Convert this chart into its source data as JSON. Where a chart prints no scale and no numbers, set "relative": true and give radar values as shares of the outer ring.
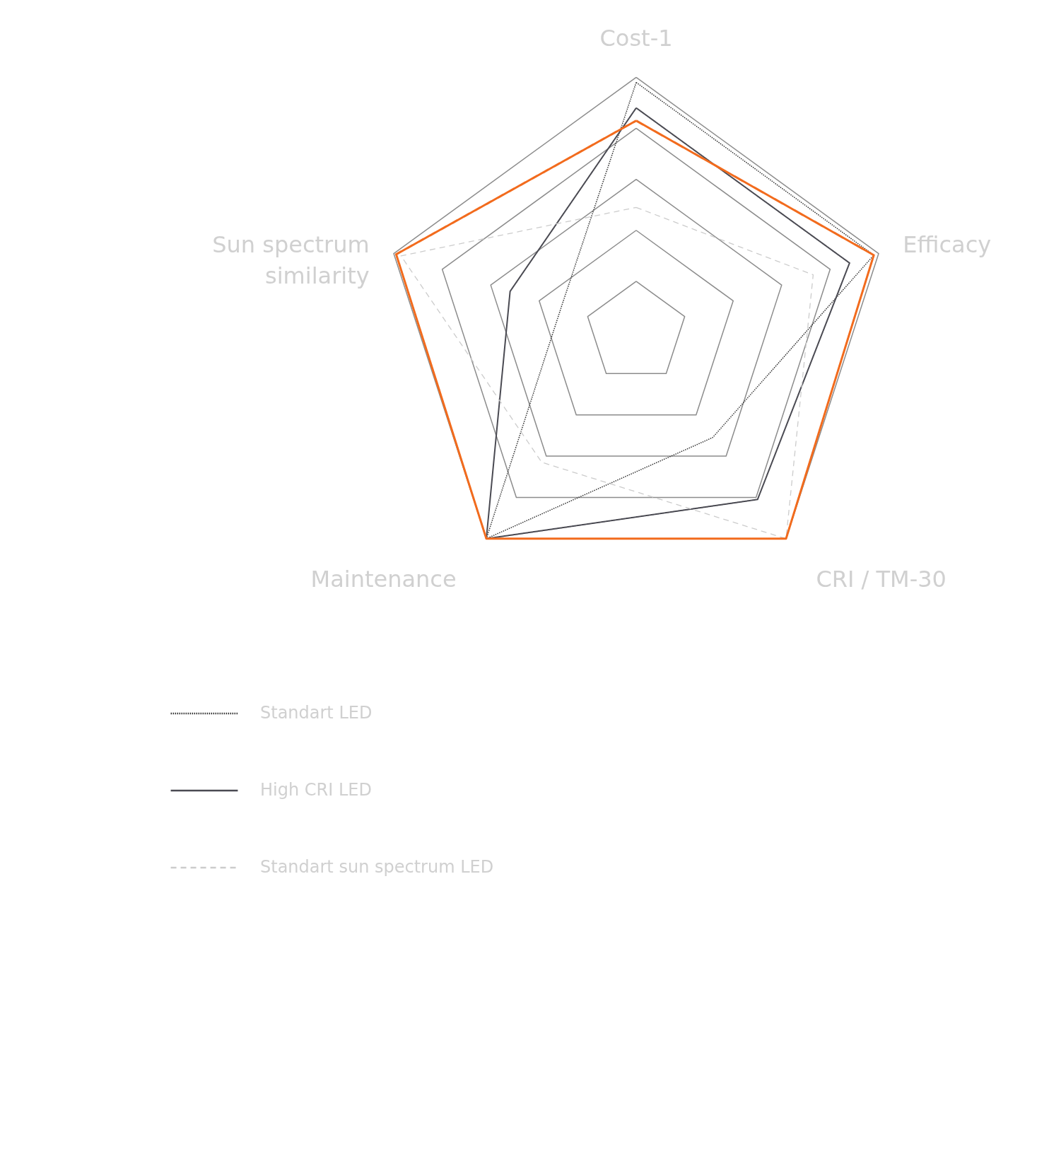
{
  "chart_data": {
    "type": "radar",
    "relative": true,
    "categories": [
      "Cost-1",
      "Efficacy",
      "CRI / TM-30",
      "Maintenance",
      "Sun spectrum similarity"
    ],
    "series": [
      {
        "name": "Standart LED",
        "color": "#333333",
        "line_style": "dotted",
        "values": [
          0.98,
          0.98,
          0.51,
          1.0,
          0.31
        ]
      },
      {
        "name": "High CRI LED",
        "color": "#4a4a52",
        "line_style": "solid",
        "values": [
          0.88,
          0.88,
          0.81,
          1.0,
          0.52
        ]
      },
      {
        "name": "Standart sun spectrum LED",
        "color": "#cccccc",
        "line_style": "dashed",
        "values": [
          0.49,
          0.73,
          1.0,
          0.63,
          0.97
        ]
      },
      {
        "color": "#f26b1d",
        "line_style": "solid",
        "values": [
          0.83,
          0.98,
          1.0,
          1.0,
          0.99
        ]
      }
    ],
    "grid": true,
    "legend": "bottom left",
    "marker": "none"
  }
}
